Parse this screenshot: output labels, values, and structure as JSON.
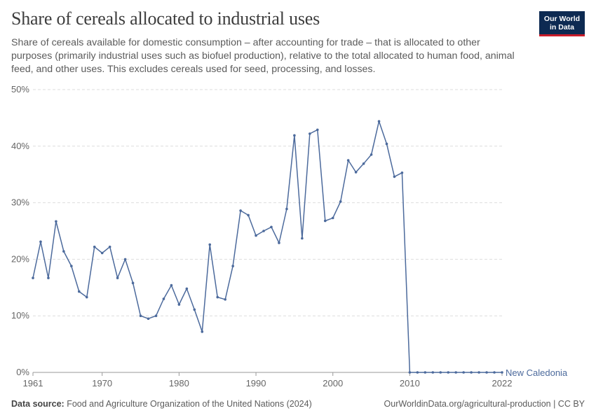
{
  "header": {
    "title": "Share of cereals allocated to industrial uses",
    "subtitle": "Share of cereals available for domestic consumption – after accounting for trade – that is allocated to other purposes (primarily industrial uses such as biofuel production), relative to the total allocated to human food, animal feed, and other uses. This excludes cereals used for seed, processing, and losses.",
    "logo_line1": "Our World",
    "logo_line2": "in Data"
  },
  "footer": {
    "source_label": "Data source:",
    "source_text": "Food and Agriculture Organization of the United Nations (2024)",
    "url": "OurWorldinData.org/agricultural-production | CC BY"
  },
  "colors": {
    "series": "#4c6a9c",
    "grid": "#dddddd",
    "axis_text": "#666666"
  },
  "chart_data": {
    "type": "line",
    "xlim": [
      1961,
      2022
    ],
    "ylim": [
      0,
      50
    ],
    "y_ticks": [
      0,
      10,
      20,
      30,
      40,
      50
    ],
    "y_tick_labels": [
      "0%",
      "10%",
      "20%",
      "30%",
      "40%",
      "50%"
    ],
    "x_ticks": [
      1961,
      1970,
      1980,
      1990,
      2000,
      2010,
      2022
    ],
    "x_tick_labels": [
      "1961",
      "1970",
      "1980",
      "1990",
      "2000",
      "2010",
      "2022"
    ],
    "grid": "horizontal dashed",
    "series": [
      {
        "name": "New Caledonia",
        "x": [
          1961,
          1962,
          1963,
          1964,
          1965,
          1966,
          1967,
          1968,
          1969,
          1970,
          1971,
          1972,
          1973,
          1974,
          1975,
          1976,
          1977,
          1978,
          1979,
          1980,
          1981,
          1982,
          1983,
          1984,
          1985,
          1986,
          1987,
          1988,
          1989,
          1990,
          1991,
          1992,
          1993,
          1994,
          1995,
          1996,
          1997,
          1998,
          1999,
          2000,
          2001,
          2002,
          2003,
          2004,
          2005,
          2006,
          2007,
          2008,
          2009,
          2010,
          2011,
          2012,
          2013,
          2014,
          2015,
          2016,
          2017,
          2018,
          2019,
          2020,
          2021,
          2022
        ],
        "y": [
          16.7,
          23.1,
          16.7,
          26.7,
          21.4,
          18.8,
          14.3,
          13.3,
          22.2,
          21.1,
          22.2,
          16.7,
          20.0,
          15.8,
          10.0,
          9.5,
          10.0,
          13.0,
          15.4,
          12.0,
          14.8,
          11.1,
          7.2,
          22.6,
          13.3,
          12.9,
          18.8,
          28.6,
          27.8,
          24.2,
          25.0,
          25.7,
          22.9,
          28.9,
          41.9,
          23.7,
          42.2,
          42.9,
          26.8,
          27.3,
          30.2,
          37.5,
          35.4,
          36.9,
          38.5,
          44.4,
          40.4,
          34.6,
          35.3,
          0,
          0,
          0,
          0,
          0,
          0,
          0,
          0,
          0,
          0,
          0,
          0,
          0
        ]
      }
    ]
  }
}
